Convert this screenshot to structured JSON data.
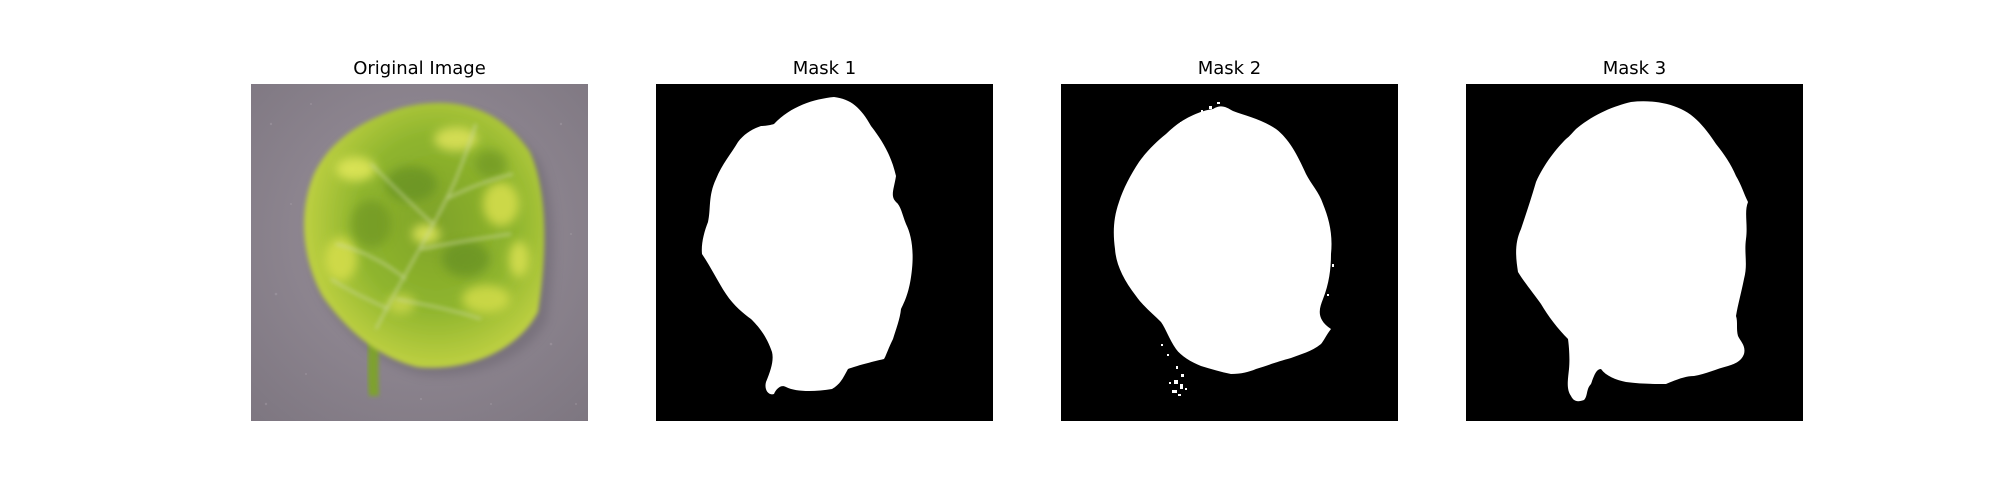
{
  "figure": {
    "panels": [
      {
        "title": "Original Image"
      },
      {
        "title": "Mask 1"
      },
      {
        "title": "Mask 2"
      },
      {
        "title": "Mask 3"
      }
    ]
  },
  "colors": {
    "background": "#ffffff",
    "mask_background": "#000000",
    "mask_foreground": "#ffffff",
    "photo_background": "#8e8590",
    "leaf_green": "#8fae2a",
    "leaf_yellow": "#d8e04a"
  }
}
